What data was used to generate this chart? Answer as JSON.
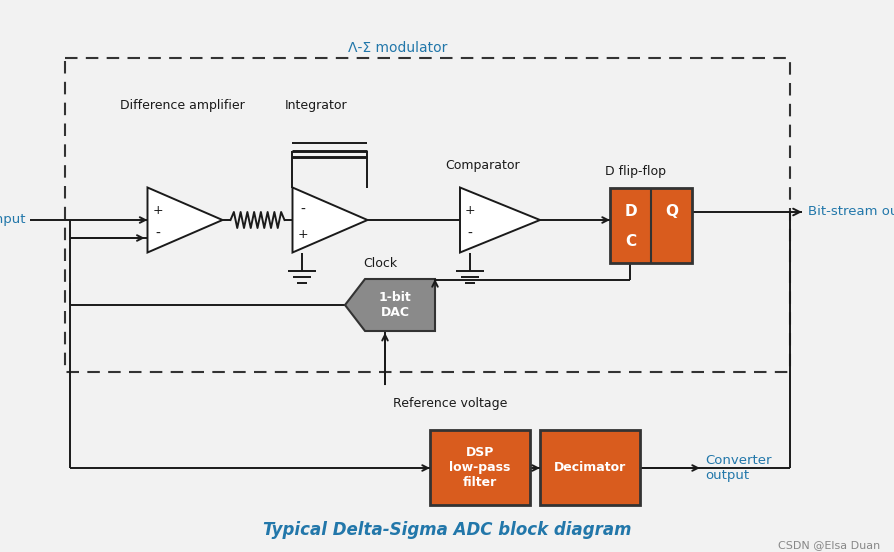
{
  "title": "Typical Delta-Sigma ADC block diagram",
  "watermark": "CSDN @Elsa Duan",
  "bg_color": "#f2f2f2",
  "orange_color": "#d95c1e",
  "gray_color": "#8a8a8a",
  "dark_color": "#1a1a1a",
  "blue_label_color": "#2277aa",
  "label_diff_amp": "Difference amplifier",
  "label_integrator": "Integrator",
  "label_comparator": "Comparator",
  "label_dff": "D flip-flop",
  "label_dac": "1-bit\nDAC",
  "label_dsp": "DSP\nlow-pass\nfilter",
  "label_decimator": "Decimator",
  "label_modulator": "Λ-Σ modulator",
  "label_input": "Input",
  "label_bitstream": "Bit-stream output",
  "label_clock": "Clock",
  "label_refvoltage": "Reference voltage",
  "label_converter": "Converter\noutput",
  "label_D": "D",
  "label_Q": "Q",
  "label_C": "C"
}
